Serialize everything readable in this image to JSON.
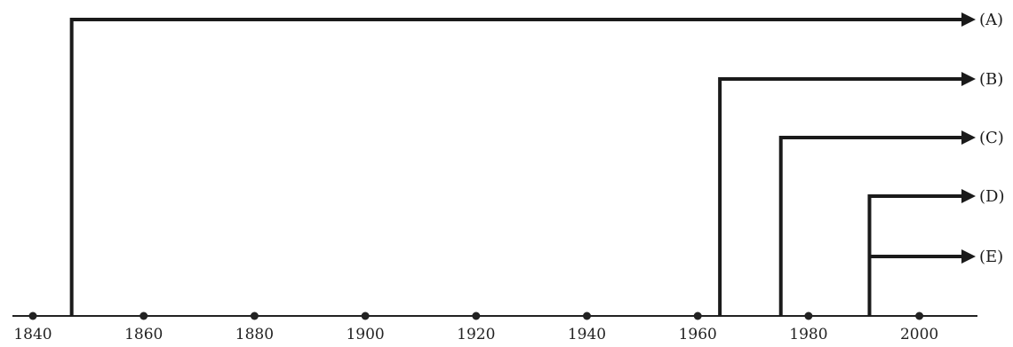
{
  "timeline": {
    "axis": {
      "ticks": [
        "1840",
        "1860",
        "1880",
        "1900",
        "1920",
        "1940",
        "1960",
        "1980",
        "2000"
      ],
      "tick_years": [
        1840,
        1860,
        1880,
        1900,
        1920,
        1940,
        1960,
        1980,
        2000
      ],
      "range": [
        1840,
        2010
      ]
    },
    "branches": [
      {
        "label": "(A)",
        "start_year": 1847
      },
      {
        "label": "(B)",
        "start_year": 1964
      },
      {
        "label": "(C)",
        "start_year": 1975
      },
      {
        "label": "(D)",
        "start_year": 1991,
        "shared_stem": true
      },
      {
        "label": "(E)",
        "start_year": 1991,
        "shared_stem": true
      }
    ],
    "colors": {
      "line": "#1a1a1a",
      "background": "#ffffff"
    }
  }
}
